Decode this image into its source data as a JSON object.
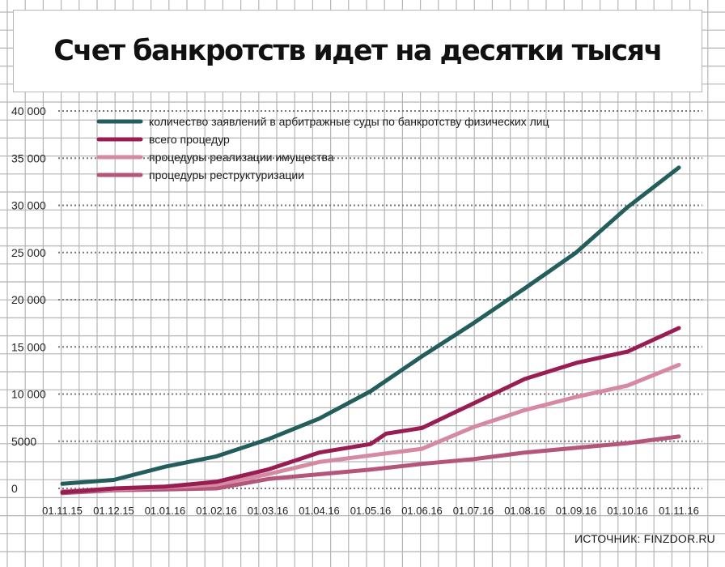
{
  "title": "Счет банкротств идет на десятки тысяч",
  "source": "ИСТОЧНИК: FINZDOR.RU",
  "colors": {
    "grid": "#b5b5b5",
    "dotted": "#777777",
    "series": [
      "#245e5c",
      "#981d52",
      "#d68aa2",
      "#b3567a"
    ]
  },
  "chart_data": {
    "type": "line",
    "title": "Счет банкротств идет на десятки тысяч",
    "xlabel": "",
    "ylabel": "",
    "ylim": [
      0,
      40000
    ],
    "yticks": [
      0,
      5000,
      10000,
      15000,
      20000,
      25000,
      30000,
      35000,
      40000
    ],
    "ytick_labels": [
      "0",
      "5000",
      "10 000",
      "15 000",
      "20 000",
      "25 000",
      "30 000",
      "35 000",
      "40 000"
    ],
    "x": [
      "01.11.15",
      "01.12.15",
      "01.01.16",
      "01.02.16",
      "01.03.16",
      "01.04.16",
      "01.05.16",
      "01.06.16",
      "01.07.16",
      "01.08.16",
      "01.09.16",
      "01.10.16",
      "01.11.16"
    ],
    "grid": true,
    "legend_position": "top-left",
    "series": [
      {
        "name": "количество заявлений в арбитражные суды по банкротству физических лиц",
        "color": "#245e5c",
        "x": [
          0,
          1,
          2,
          3,
          4,
          5,
          6,
          7,
          8,
          9,
          10,
          11,
          12
        ],
        "values": [
          500,
          900,
          2300,
          3400,
          5200,
          7400,
          10300,
          14000,
          17500,
          21200,
          25000,
          29800,
          34000
        ]
      },
      {
        "name": "всего процедур",
        "color": "#981d52",
        "x": [
          0,
          1,
          2,
          3,
          4,
          5,
          6,
          6.3,
          7,
          8,
          9,
          10,
          11,
          12
        ],
        "values": [
          -400,
          0,
          200,
          700,
          2000,
          3800,
          4700,
          5800,
          6400,
          9000,
          11600,
          13300,
          14500,
          17000
        ]
      },
      {
        "name": "процедуры  реализации имущества",
        "color": "#d68aa2",
        "x": [
          0,
          1,
          2,
          3,
          4,
          5,
          6,
          7,
          8,
          9,
          10,
          11,
          12
        ],
        "values": [
          -300,
          -100,
          100,
          400,
          1500,
          2800,
          3500,
          4200,
          6500,
          8300,
          9700,
          10900,
          13100
        ]
      },
      {
        "name": "процедуры реструктуризации",
        "color": "#b3567a",
        "x": [
          0,
          1,
          2,
          3,
          4,
          5,
          6,
          7,
          8,
          9,
          10,
          11,
          12
        ],
        "values": [
          -500,
          -200,
          -100,
          0,
          1000,
          1500,
          2000,
          2600,
          3100,
          3800,
          4300,
          4800,
          5500
        ]
      }
    ]
  }
}
